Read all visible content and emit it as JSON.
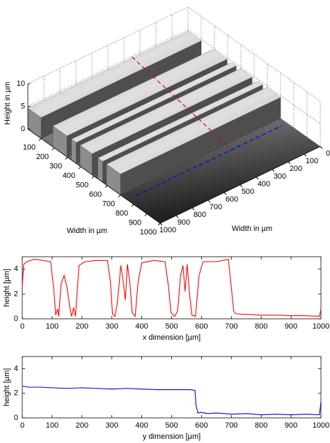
{
  "chart_data": [
    {
      "type": "surface",
      "zlabel": "Height in µm",
      "xlabel": "Width in µm",
      "ylabel": "Width in µm",
      "zlim": [
        0,
        10
      ],
      "zticks": [
        0,
        5,
        10
      ],
      "xlim": [
        0,
        1000
      ],
      "xticks": [
        100,
        200,
        300,
        400,
        500,
        600,
        700,
        800,
        900,
        1000
      ],
      "ylim": [
        0,
        1000
      ],
      "yticks": [
        0,
        100,
        200,
        300,
        400,
        500,
        600,
        700,
        800,
        900,
        1000
      ]
    },
    {
      "type": "line",
      "xlabel": "x dimension [µm]",
      "ylabel": "height [µm]",
      "xlim": [
        0,
        1000
      ],
      "xticks": [
        0,
        100,
        200,
        300,
        400,
        500,
        600,
        700,
        800,
        900,
        1000
      ],
      "ylim": [
        0,
        5
      ],
      "yticks": [
        0,
        2,
        4
      ],
      "x": [
        0,
        5,
        15,
        40,
        70,
        95,
        105,
        112,
        118,
        122,
        130,
        140,
        150,
        160,
        165,
        172,
        178,
        190,
        210,
        250,
        285,
        295,
        302,
        310,
        318,
        330,
        338,
        345,
        352,
        360,
        368,
        378,
        388,
        400,
        440,
        478,
        490,
        498,
        510,
        520,
        530,
        538,
        545,
        552,
        560,
        568,
        580,
        592,
        605,
        650,
        690,
        700,
        708,
        715,
        760,
        800,
        850,
        900,
        950,
        995,
        1000
      ],
      "series": [
        {
          "color": "#ff0000",
          "values": [
            2.6,
            4.4,
            4.6,
            4.8,
            4.7,
            4.6,
            2.5,
            0.3,
            0.8,
            0.2,
            2.8,
            3.5,
            2.5,
            0.8,
            0.2,
            0.9,
            0.2,
            4.3,
            4.6,
            4.7,
            4.7,
            3.0,
            0.4,
            0.2,
            1.2,
            4.3,
            3.0,
            1.5,
            4.4,
            3.0,
            0.5,
            0.2,
            3.0,
            4.5,
            4.7,
            4.6,
            2.5,
            0.5,
            0.2,
            0.6,
            3.5,
            4.3,
            2.2,
            4.4,
            2.0,
            0.3,
            0.2,
            3.5,
            4.6,
            4.6,
            4.8,
            2.5,
            0.6,
            0.4,
            0.35,
            0.3,
            0.3,
            0.25,
            0.25,
            0.2,
            0.8
          ]
        }
      ]
    },
    {
      "type": "line",
      "xlabel": "y dimension [µm]",
      "ylabel": "height [µm]",
      "xlim": [
        0,
        1000
      ],
      "xticks": [
        0,
        100,
        200,
        300,
        400,
        500,
        600,
        700,
        800,
        900,
        1000
      ],
      "ylim": [
        0,
        5
      ],
      "yticks": [
        0,
        2,
        4
      ],
      "x": [
        0,
        20,
        60,
        100,
        150,
        200,
        250,
        300,
        350,
        400,
        450,
        500,
        560,
        578,
        582,
        588,
        600,
        620,
        650,
        700,
        750,
        800,
        850,
        900,
        950,
        995,
        1000
      ],
      "series": [
        {
          "color": "#0000cc",
          "values": [
            2.6,
            2.5,
            2.5,
            2.45,
            2.4,
            2.45,
            2.4,
            2.35,
            2.4,
            2.35,
            2.3,
            2.3,
            2.3,
            2.25,
            1.0,
            0.4,
            0.45,
            0.35,
            0.4,
            0.3,
            0.35,
            0.25,
            0.3,
            0.25,
            0.3,
            0.25,
            1.3
          ]
        }
      ]
    }
  ]
}
